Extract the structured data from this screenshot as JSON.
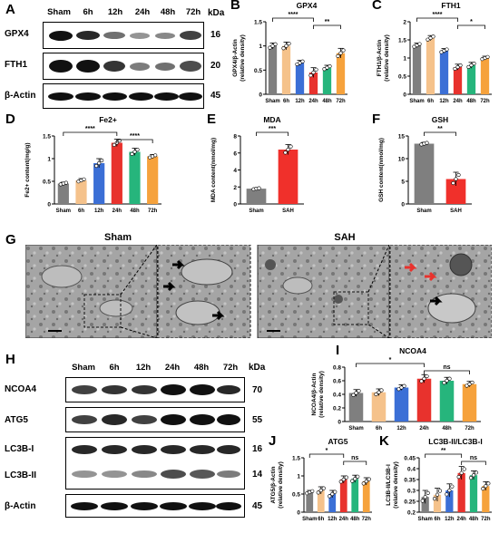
{
  "panels": {
    "A": {
      "letter": "A",
      "lanes": [
        "Sham",
        "6h",
        "12h",
        "24h",
        "48h",
        "72h"
      ],
      "kda_header": "kDa",
      "rows": [
        {
          "label": "GPX4",
          "kda": "16"
        },
        {
          "label": "FTH1",
          "kda": "20"
        },
        {
          "label": "β-Actin",
          "kda": "45"
        }
      ]
    },
    "G": {
      "letter": "G",
      "sham_label": "Sham",
      "sah_label": "SAH"
    },
    "H": {
      "letter": "H",
      "lanes": [
        "Sham",
        "6h",
        "12h",
        "24h",
        "48h",
        "72h"
      ],
      "kda_header": "kDa",
      "rows": [
        {
          "label": "NCOA4",
          "kda": "70"
        },
        {
          "label": "ATG5",
          "kda": "55"
        },
        {
          "label": "LC3B-I",
          "kda": "16"
        },
        {
          "label": "LC3B-II",
          "kda": "14"
        },
        {
          "label": "β-Actin",
          "kda": "45"
        }
      ]
    }
  },
  "chart_data": [
    {
      "id": "B",
      "letter": "B",
      "type": "bar",
      "title": "GPX4",
      "ylabel": "GPX4/β-Actin\n(relative density)",
      "categories": [
        "Sham",
        "6h",
        "12h",
        "24h",
        "48h",
        "72h"
      ],
      "values": [
        1.0,
        1.0,
        0.65,
        0.45,
        0.55,
        0.85
      ],
      "errors": [
        0.06,
        0.08,
        0.05,
        0.1,
        0.05,
        0.1
      ],
      "colors": [
        "#7f7f7f",
        "#f5c28b",
        "#3b6fd6",
        "#e8322d",
        "#26b57c",
        "#f6a23c"
      ],
      "ylim": [
        0,
        1.5
      ],
      "yticks": [
        0.0,
        0.5,
        1.0,
        1.5
      ],
      "significance": [
        {
          "from": 0,
          "to": 3,
          "label": "****"
        },
        {
          "from": 3,
          "to": 5,
          "label": "**"
        }
      ]
    },
    {
      "id": "C",
      "letter": "C",
      "type": "bar",
      "title": "FTH1",
      "ylabel": "FTH1/β-Actin\n(relative density)",
      "categories": [
        "Sham",
        "6h",
        "12h",
        "24h",
        "48h",
        "72h"
      ],
      "values": [
        1.35,
        1.55,
        1.2,
        0.75,
        0.8,
        1.0
      ],
      "errors": [
        0.06,
        0.07,
        0.06,
        0.08,
        0.08,
        0.05
      ],
      "colors": [
        "#7f7f7f",
        "#f5c28b",
        "#3b6fd6",
        "#e8322d",
        "#26b57c",
        "#f6a23c"
      ],
      "ylim": [
        0,
        2.0
      ],
      "yticks": [
        0.0,
        0.5,
        1.0,
        1.5,
        2.0
      ],
      "significance": [
        {
          "from": 0,
          "to": 3,
          "label": "****"
        },
        {
          "from": 3,
          "to": 5,
          "label": "*"
        }
      ]
    },
    {
      "id": "D",
      "letter": "D",
      "type": "bar",
      "title": "Fe2+",
      "ylabel": "Fe2+ content(mg/g)",
      "categories": [
        "Sham",
        "6h",
        "12h",
        "24h",
        "48h",
        "72h"
      ],
      "values": [
        0.45,
        0.52,
        0.9,
        1.35,
        1.15,
        1.05
      ],
      "errors": [
        0.03,
        0.04,
        0.1,
        0.08,
        0.08,
        0.04
      ],
      "colors": [
        "#7f7f7f",
        "#f5c28b",
        "#3b6fd6",
        "#e8322d",
        "#26b57c",
        "#f6a23c"
      ],
      "ylim": [
        0,
        1.5
      ],
      "yticks": [
        0.0,
        0.5,
        1.0,
        1.5
      ],
      "significance": [
        {
          "from": 0,
          "to": 3,
          "label": "****"
        },
        {
          "from": 3,
          "to": 5,
          "label": "****"
        }
      ]
    },
    {
      "id": "E",
      "letter": "E",
      "type": "bar",
      "title": "MDA",
      "ylabel": "MDA content(nmol/mg)",
      "categories": [
        "Sham",
        "SAH"
      ],
      "values": [
        1.8,
        6.4
      ],
      "errors": [
        0.1,
        0.6
      ],
      "colors": [
        "#7f7f7f",
        "#f0302b"
      ],
      "ylim": [
        0,
        8
      ],
      "yticks": [
        0,
        2,
        4,
        6,
        8
      ],
      "significance": [
        {
          "from": 0,
          "to": 1,
          "label": "***"
        }
      ]
    },
    {
      "id": "F",
      "letter": "F",
      "type": "bar",
      "title": "GSH",
      "ylabel": "GSH content(nmol/mg)",
      "categories": [
        "Sham",
        "SAH"
      ],
      "values": [
        13.3,
        5.5
      ],
      "errors": [
        0.3,
        1.5
      ],
      "colors": [
        "#7f7f7f",
        "#f0302b"
      ],
      "ylim": [
        0,
        15
      ],
      "yticks": [
        0,
        5,
        10,
        15
      ],
      "significance": [
        {
          "from": 0,
          "to": 1,
          "label": "**"
        }
      ]
    },
    {
      "id": "I",
      "letter": "I",
      "type": "bar",
      "title": "NCOA4",
      "ylabel": "NCOA4/β-Actin\n(relative density)",
      "categories": [
        "Sham",
        "6h",
        "12h",
        "24h",
        "48h",
        "72h"
      ],
      "values": [
        0.42,
        0.43,
        0.5,
        0.63,
        0.6,
        0.55
      ],
      "errors": [
        0.05,
        0.05,
        0.04,
        0.06,
        0.05,
        0.04
      ],
      "colors": [
        "#7f7f7f",
        "#f5c28b",
        "#3b6fd6",
        "#e8322d",
        "#26b57c",
        "#f6a23c"
      ],
      "ylim": [
        0,
        0.8
      ],
      "yticks": [
        0.0,
        0.2,
        0.4,
        0.6,
        0.8
      ],
      "significance": [
        {
          "from": 0,
          "to": 3,
          "label": "*"
        },
        {
          "from": 3,
          "to": 5,
          "label": "ns"
        }
      ]
    },
    {
      "id": "J",
      "letter": "J",
      "type": "bar",
      "title": "ATG5",
      "ylabel": "ATG5/β-Actin\n(relative density)",
      "categories": [
        "Sham",
        "6h",
        "12h",
        "24h",
        "48h",
        "72h"
      ],
      "values": [
        0.55,
        0.6,
        0.5,
        0.9,
        0.92,
        0.85
      ],
      "errors": [
        0.05,
        0.1,
        0.1,
        0.1,
        0.1,
        0.1
      ],
      "colors": [
        "#7f7f7f",
        "#f5c28b",
        "#3b6fd6",
        "#e8322d",
        "#26b57c",
        "#f6a23c"
      ],
      "ylim": [
        0,
        1.5
      ],
      "yticks": [
        0.0,
        0.5,
        1.0,
        1.5
      ],
      "significance": [
        {
          "from": 0,
          "to": 3,
          "label": "*"
        },
        {
          "from": 3,
          "to": 5,
          "label": "ns"
        }
      ]
    },
    {
      "id": "K",
      "letter": "K",
      "type": "bar",
      "title": "LC3B-II/LC3B-I",
      "ylabel": "LC3B-II/LC3B-I\n(relative density)",
      "categories": [
        "Sham",
        "6h",
        "12h",
        "24h",
        "48h",
        "72h"
      ],
      "values": [
        0.27,
        0.28,
        0.3,
        0.38,
        0.37,
        0.32
      ],
      "errors": [
        0.03,
        0.03,
        0.03,
        0.03,
        0.02,
        0.02
      ],
      "colors": [
        "#7f7f7f",
        "#f5c28b",
        "#3b6fd6",
        "#e8322d",
        "#26b57c",
        "#f6a23c"
      ],
      "ylim": [
        0.2,
        0.45
      ],
      "yticks": [
        0.2,
        0.25,
        0.3,
        0.35,
        0.4,
        0.45
      ],
      "significance": [
        {
          "from": 0,
          "to": 3,
          "label": "**"
        },
        {
          "from": 3,
          "to": 5,
          "label": "ns"
        }
      ]
    }
  ]
}
